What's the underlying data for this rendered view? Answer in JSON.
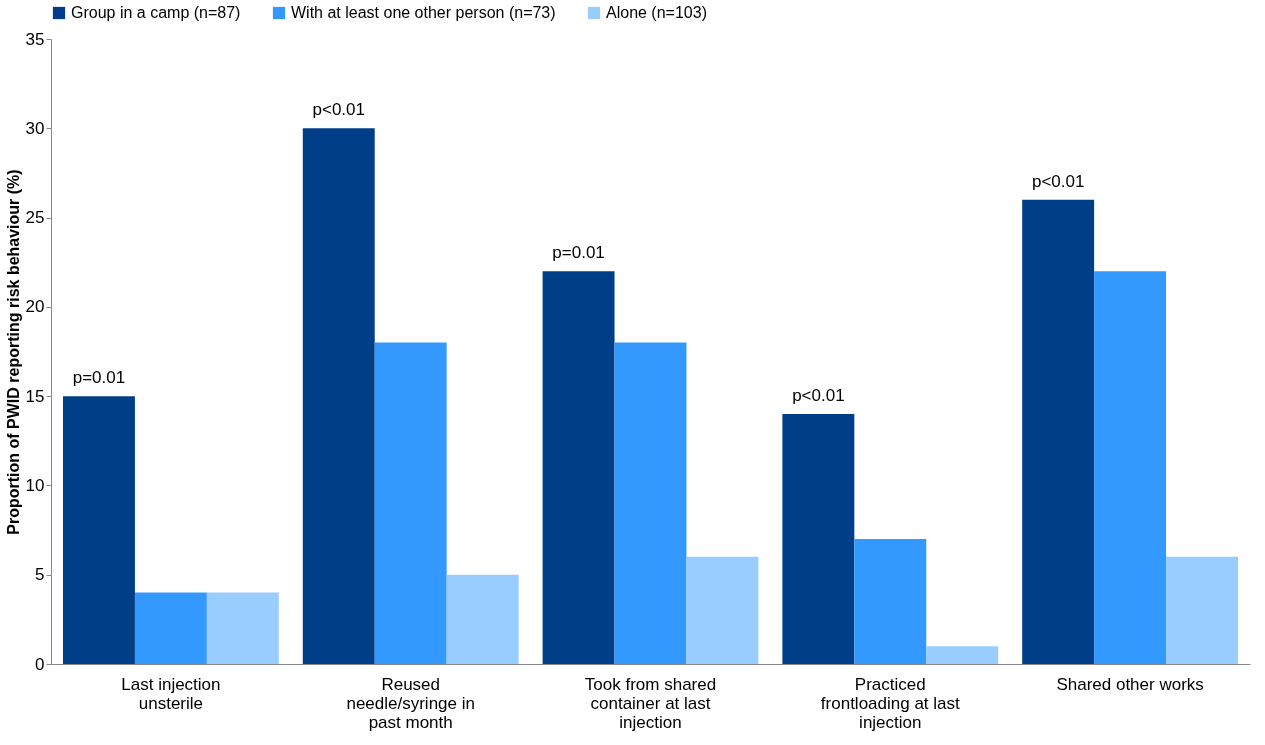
{
  "chart_data": {
    "type": "bar",
    "ylabel": "Proportion of PWID reporting risk behaviour (%)",
    "categories": [
      "Last injection unsterile",
      "Reused needle/syringe in past month",
      "Took from shared container at last injection",
      "Practiced frontloading at last injection",
      "Shared other works"
    ],
    "series": [
      {
        "name": "Group in a camp (n=87)",
        "color": "#003f87",
        "values": [
          15,
          30,
          22,
          14,
          26
        ]
      },
      {
        "name": "With at least one other person (n=73)",
        "color": "#3399ff",
        "values": [
          4,
          18,
          18,
          7,
          22
        ]
      },
      {
        "name": "Alone (n=103)",
        "color": "#99ccff",
        "values": [
          4,
          5,
          6,
          1,
          6
        ]
      }
    ],
    "ylim": [
      0,
      35
    ],
    "yticks": [
      0,
      5,
      10,
      15,
      20,
      25,
      30,
      35
    ],
    "grid": false,
    "legend": "top",
    "annotations": [
      "p=0.01",
      "p<0.01",
      "p=0.01",
      "p<0.01",
      "p<0.01"
    ]
  }
}
